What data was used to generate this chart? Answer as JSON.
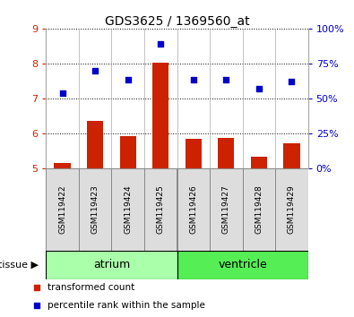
{
  "title": "GDS3625 / 1369560_at",
  "samples": [
    "GSM119422",
    "GSM119423",
    "GSM119424",
    "GSM119425",
    "GSM119426",
    "GSM119427",
    "GSM119428",
    "GSM119429"
  ],
  "bar_values": [
    5.15,
    6.35,
    5.92,
    8.02,
    5.84,
    5.87,
    5.32,
    5.72
  ],
  "dot_values": [
    7.15,
    7.78,
    7.52,
    8.55,
    7.52,
    7.52,
    7.27,
    7.47
  ],
  "bar_color": "#cc2200",
  "dot_color": "#0000cc",
  "ylim_left": [
    5,
    9
  ],
  "ylim_right": [
    0,
    100
  ],
  "yticks_left": [
    5,
    6,
    7,
    8,
    9
  ],
  "yticks_right": [
    0,
    25,
    50,
    75,
    100
  ],
  "ytick_labels_right": [
    "0%",
    "25%",
    "50%",
    "75%",
    "100%"
  ],
  "tissue_groups": [
    {
      "label": "atrium",
      "start": 0,
      "end": 3,
      "color": "#aaffaa"
    },
    {
      "label": "ventricle",
      "start": 4,
      "end": 7,
      "color": "#55ee55"
    }
  ],
  "tissue_label": "tissue",
  "legend_items": [
    {
      "label": "transformed count",
      "color": "#cc2200"
    },
    {
      "label": "percentile rank within the sample",
      "color": "#0000cc"
    }
  ],
  "bar_width": 0.5,
  "background_color": "#ffffff",
  "plot_bg": "#ffffff",
  "tick_label_color_left": "#cc2200",
  "tick_label_color_right": "#0000cc"
}
